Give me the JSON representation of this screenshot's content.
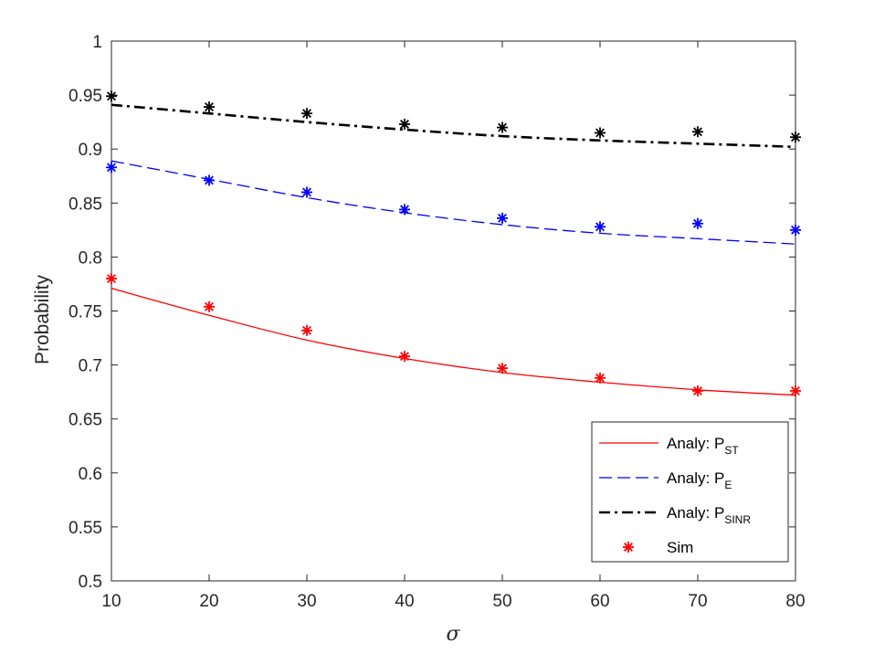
{
  "chart_data": {
    "type": "line",
    "xlabel": "σ",
    "ylabel": "Probability",
    "xlim": [
      10,
      80
    ],
    "ylim": [
      0.5,
      1
    ],
    "xticks": [
      "10",
      "20",
      "30",
      "40",
      "50",
      "60",
      "70",
      "80"
    ],
    "yticks": [
      "0.5",
      "0.55",
      "0.6",
      "0.65",
      "0.7",
      "0.75",
      "0.8",
      "0.85",
      "0.9",
      "0.95",
      "1"
    ],
    "grid": false,
    "legend_position": "bottom-right",
    "series": [
      {
        "label_prefix": "Analy: P",
        "label_sub": "ST",
        "style": "solid",
        "color": "#ff0000",
        "x": [
          10,
          20,
          30,
          40,
          50,
          60,
          70,
          80
        ],
        "values": [
          0.771,
          0.746,
          0.723,
          0.706,
          0.693,
          0.684,
          0.677,
          0.672
        ]
      },
      {
        "label_prefix": "Analy: P",
        "label_sub": "E",
        "style": "dashed",
        "color": "#0000ff",
        "x": [
          10,
          20,
          30,
          40,
          50,
          60,
          70,
          80
        ],
        "values": [
          0.889,
          0.872,
          0.855,
          0.841,
          0.83,
          0.822,
          0.817,
          0.812
        ]
      },
      {
        "label_prefix": "Analy: P",
        "label_sub": "SINR",
        "style": "dashdot",
        "color": "#000000",
        "x": [
          10,
          20,
          30,
          40,
          50,
          60,
          70,
          80
        ],
        "values": [
          0.941,
          0.933,
          0.925,
          0.918,
          0.912,
          0.908,
          0.905,
          0.902
        ]
      }
    ],
    "sim": {
      "label": "Sim",
      "marker": "*",
      "legend_color": "#ff0000",
      "x": [
        10,
        20,
        30,
        40,
        50,
        60,
        70,
        80
      ],
      "ST": [
        0.78,
        0.754,
        0.732,
        0.708,
        0.697,
        0.688,
        0.676,
        0.676
      ],
      "E": [
        0.883,
        0.871,
        0.86,
        0.844,
        0.836,
        0.828,
        0.831,
        0.825
      ],
      "SINR": [
        0.949,
        0.939,
        0.933,
        0.923,
        0.92,
        0.915,
        0.916,
        0.911
      ]
    }
  }
}
